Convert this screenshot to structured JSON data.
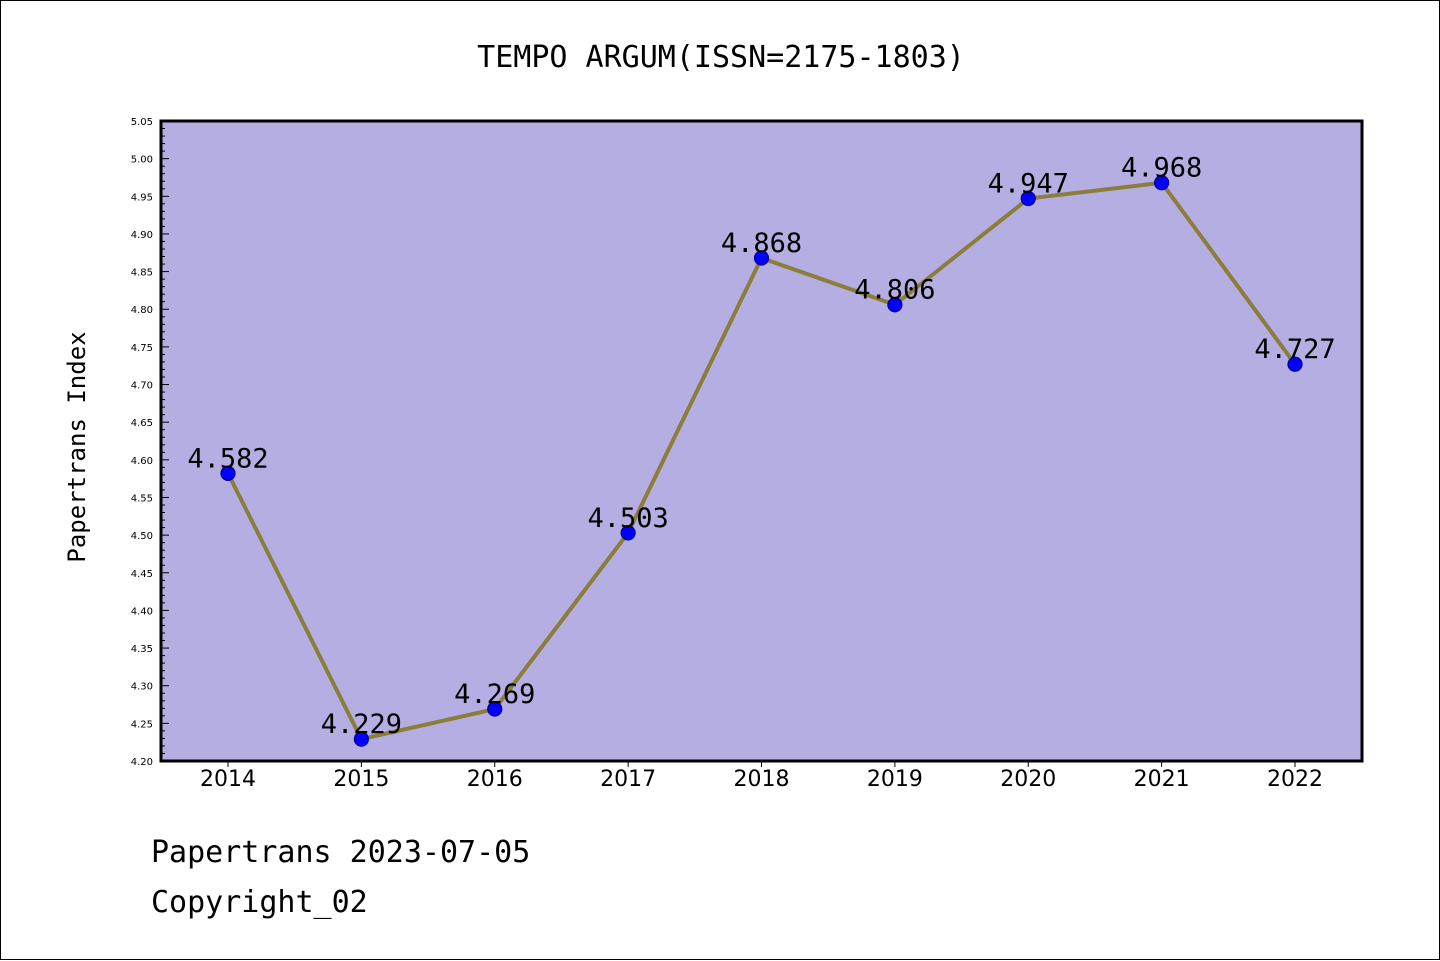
{
  "chart_data": {
    "type": "line",
    "title": "TEMPO ARGUM(ISSN=2175-1803)",
    "xlabel": "",
    "ylabel": "Papertrans Index",
    "categories": [
      "2014",
      "2015",
      "2016",
      "2017",
      "2018",
      "2019",
      "2020",
      "2021",
      "2022"
    ],
    "series": [
      {
        "values": [
          4.582,
          4.229,
          4.269,
          4.503,
          4.868,
          4.806,
          4.947,
          4.968,
          4.727
        ],
        "value_labels": [
          "4.582",
          "4.229",
          "4.269",
          "4.503",
          "4.868",
          "4.806",
          "4.947",
          "4.968",
          "4.727"
        ]
      }
    ],
    "ylim": [
      4.2,
      5.05
    ],
    "yticks": [
      4.2,
      4.25,
      4.3,
      4.35,
      4.4,
      4.45,
      4.5,
      4.55,
      4.6,
      4.65,
      4.7,
      4.75,
      4.8,
      4.85,
      4.9,
      4.95,
      5.0,
      5.05
    ],
    "ytick_labels": [
      "4.20",
      "4.25",
      "4.30",
      "4.35",
      "4.40",
      "4.45",
      "4.50",
      "4.55",
      "4.60",
      "4.65",
      "4.70",
      "4.75",
      "4.80",
      "4.85",
      "4.90",
      "4.95",
      "5.00",
      "5.05"
    ],
    "grid": false,
    "legend": "none",
    "colors": {
      "plot_background": "#b5aee3",
      "line": "#8b7d3a",
      "marker_fill": "#0000ff",
      "marker_edge": "#00008b"
    }
  },
  "footer": {
    "line1": "Papertrans 2023-07-05",
    "line2": "Copyright_02"
  }
}
